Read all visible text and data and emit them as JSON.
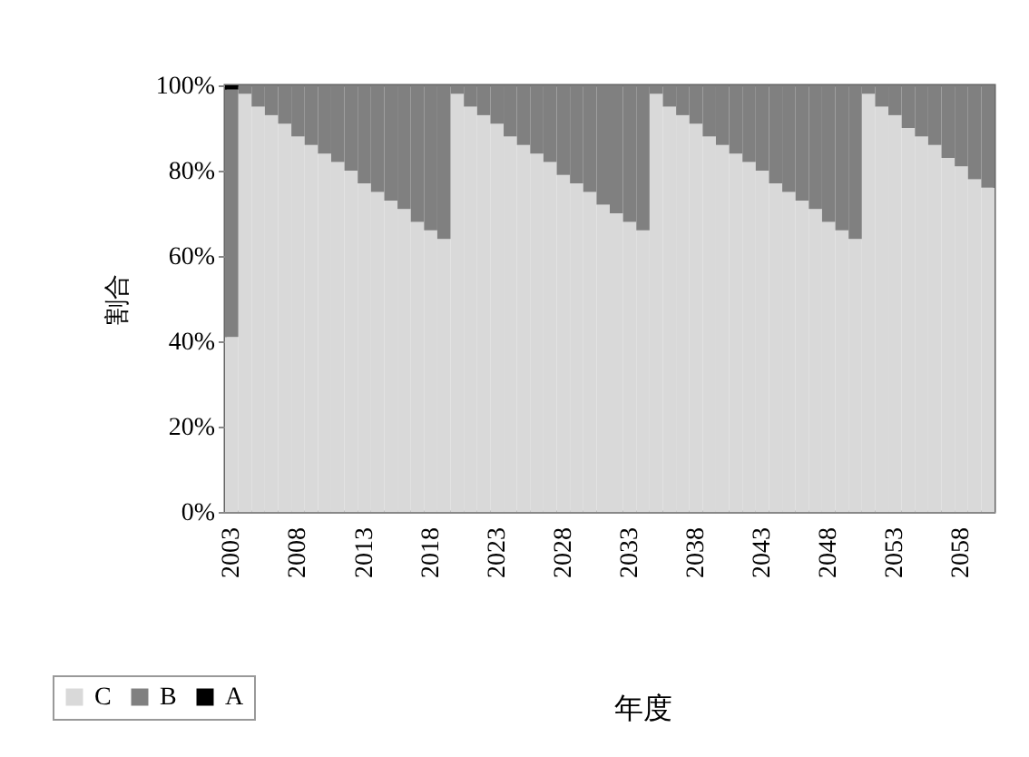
{
  "chart_data": {
    "type": "bar",
    "stacked": true,
    "ylabel": "割合",
    "xlabel": "年度",
    "legend": "bottom",
    "grid": false,
    "categories": [
      "2003",
      null,
      null,
      null,
      null,
      "2008",
      null,
      null,
      null,
      null,
      "2013",
      null,
      null,
      null,
      null,
      "2018",
      null,
      null,
      null,
      null,
      "2023",
      null,
      null,
      null,
      null,
      "2028",
      null,
      null,
      null,
      null,
      "2033",
      null,
      null,
      null,
      null,
      "2038",
      null,
      null,
      null,
      null,
      "2043",
      null,
      null,
      null,
      null,
      "2048",
      null,
      null,
      null,
      null,
      "2053",
      null,
      null,
      null,
      null,
      "2058",
      null,
      null
    ],
    "series": [
      {
        "name": "C",
        "color": "#d9d9d9",
        "values": [
          41,
          98,
          95,
          93,
          91,
          88,
          86,
          84,
          82,
          80,
          77,
          75,
          73,
          71,
          68,
          66,
          64,
          98,
          95,
          93,
          91,
          88,
          86,
          84,
          82,
          79,
          77,
          75,
          72,
          70,
          68,
          66,
          98,
          95,
          93,
          91,
          88,
          86,
          84,
          82,
          80,
          77,
          75,
          73,
          71,
          68,
          66,
          64,
          98,
          95,
          93,
          90,
          88,
          86,
          83,
          81,
          78,
          76
        ]
      },
      {
        "name": "B",
        "color": "#808080",
        "values": [
          58,
          2,
          5,
          7,
          9,
          12,
          14,
          16,
          18,
          20,
          23,
          25,
          27,
          29,
          32,
          34,
          36,
          2,
          5,
          7,
          9,
          12,
          14,
          16,
          18,
          21,
          23,
          25,
          28,
          30,
          32,
          34,
          2,
          5,
          7,
          9,
          12,
          14,
          16,
          18,
          20,
          23,
          25,
          27,
          29,
          32,
          34,
          36,
          2,
          5,
          7,
          10,
          12,
          14,
          17,
          19,
          22,
          24
        ]
      },
      {
        "name": "A",
        "color": "#000000",
        "values": [
          1,
          0,
          0,
          0,
          0,
          0,
          0,
          0,
          0,
          0,
          0,
          0,
          0,
          0,
          0,
          0,
          0,
          0,
          0,
          0,
          0,
          0,
          0,
          0,
          0,
          0,
          0,
          0,
          0,
          0,
          0,
          0,
          0,
          0,
          0,
          0,
          0,
          0,
          0,
          0,
          0,
          0,
          0,
          0,
          0,
          0,
          0,
          0,
          0,
          0,
          0,
          0,
          0,
          0,
          0,
          0,
          0,
          0
        ]
      }
    ],
    "ylim": [
      0,
      100
    ],
    "yticks": [
      {
        "value": 0,
        "label": "0%"
      },
      {
        "value": 20,
        "label": "20%"
      },
      {
        "value": 40,
        "label": "40%"
      },
      {
        "value": 60,
        "label": "60%"
      },
      {
        "value": 80,
        "label": "80%"
      },
      {
        "value": 100,
        "label": "100%"
      }
    ]
  }
}
